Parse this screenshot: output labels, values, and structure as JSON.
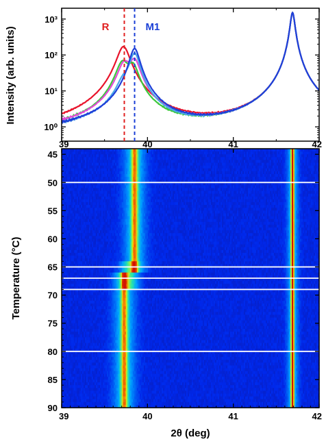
{
  "chart_data": [
    {
      "type": "line",
      "panel": "top",
      "yscale": "log",
      "xlim": [
        39,
        42
      ],
      "ylim": [
        0.4,
        2000
      ],
      "ylabel": "Intensity (arb. units)",
      "x_ticks": [
        39,
        40,
        41,
        42
      ],
      "x_tick_labels": [
        "39",
        "40",
        "41",
        "42"
      ],
      "y_ticks": [
        1,
        10,
        100,
        1000
      ],
      "y_tick_labels": [
        "10⁰",
        "10¹",
        "10²",
        "10³"
      ],
      "markers": [
        {
          "label": "R",
          "x": 39.73,
          "color": "#e02020"
        },
        {
          "label": "M1",
          "x": 39.85,
          "color": "#1a3fd6"
        }
      ],
      "series": [
        {
          "color": "#e8132a",
          "peaks": [
            {
              "x": 39.72,
              "h": 170,
              "w": 0.07
            },
            {
              "x": 41.69,
              "h": 1500,
              "w": 0.025
            }
          ],
          "bg": 0.62
        },
        {
          "color": "#3cc83c",
          "peaks": [
            {
              "x": 39.71,
              "h": 60,
              "w": 0.07
            },
            {
              "x": 39.83,
              "h": 45,
              "w": 0.06
            },
            {
              "x": 41.69,
              "h": 1500,
              "w": 0.025
            }
          ],
          "bg": 0.66
        },
        {
          "color": "#e24bd8",
          "peaks": [
            {
              "x": 39.73,
              "h": 55,
              "w": 0.07
            },
            {
              "x": 39.85,
              "h": 65,
              "w": 0.06
            },
            {
              "x": 41.69,
              "h": 1500,
              "w": 0.025
            }
          ],
          "bg": 0.64
        },
        {
          "color": "#4aa8e8",
          "peaks": [
            {
              "x": 39.72,
              "h": 12,
              "w": 0.07
            },
            {
              "x": 39.85,
              "h": 110,
              "w": 0.055
            },
            {
              "x": 41.69,
              "h": 1500,
              "w": 0.025
            }
          ],
          "bg": 0.66
        },
        {
          "color": "#1f3fd8",
          "peaks": [
            {
              "x": 39.85,
              "h": 150,
              "w": 0.055
            },
            {
              "x": 41.69,
              "h": 1500,
              "w": 0.025
            }
          ],
          "bg": 0.63
        }
      ]
    },
    {
      "type": "heatmap",
      "panel": "bottom",
      "xlim": [
        39,
        42
      ],
      "ylim": [
        44,
        90
      ],
      "xlabel": "2θ (deg)",
      "ylabel": "Temperature (°C)",
      "x_ticks": [
        39,
        40,
        41,
        42
      ],
      "x_tick_labels": [
        "39",
        "40",
        "41",
        "42"
      ],
      "y_ticks": [
        45,
        50,
        55,
        60,
        65,
        70,
        75,
        80,
        85,
        90
      ],
      "y_tick_labels": [
        "45",
        "50",
        "55",
        "60",
        "65",
        "70",
        "75",
        "80",
        "85",
        "90"
      ],
      "horizontal_lines_T": [
        50,
        65,
        67,
        69,
        80
      ],
      "transition_T": 66,
      "low_T_peak": 39.85,
      "high_T_peak": 39.73,
      "fixed_peak": 41.69
    }
  ]
}
